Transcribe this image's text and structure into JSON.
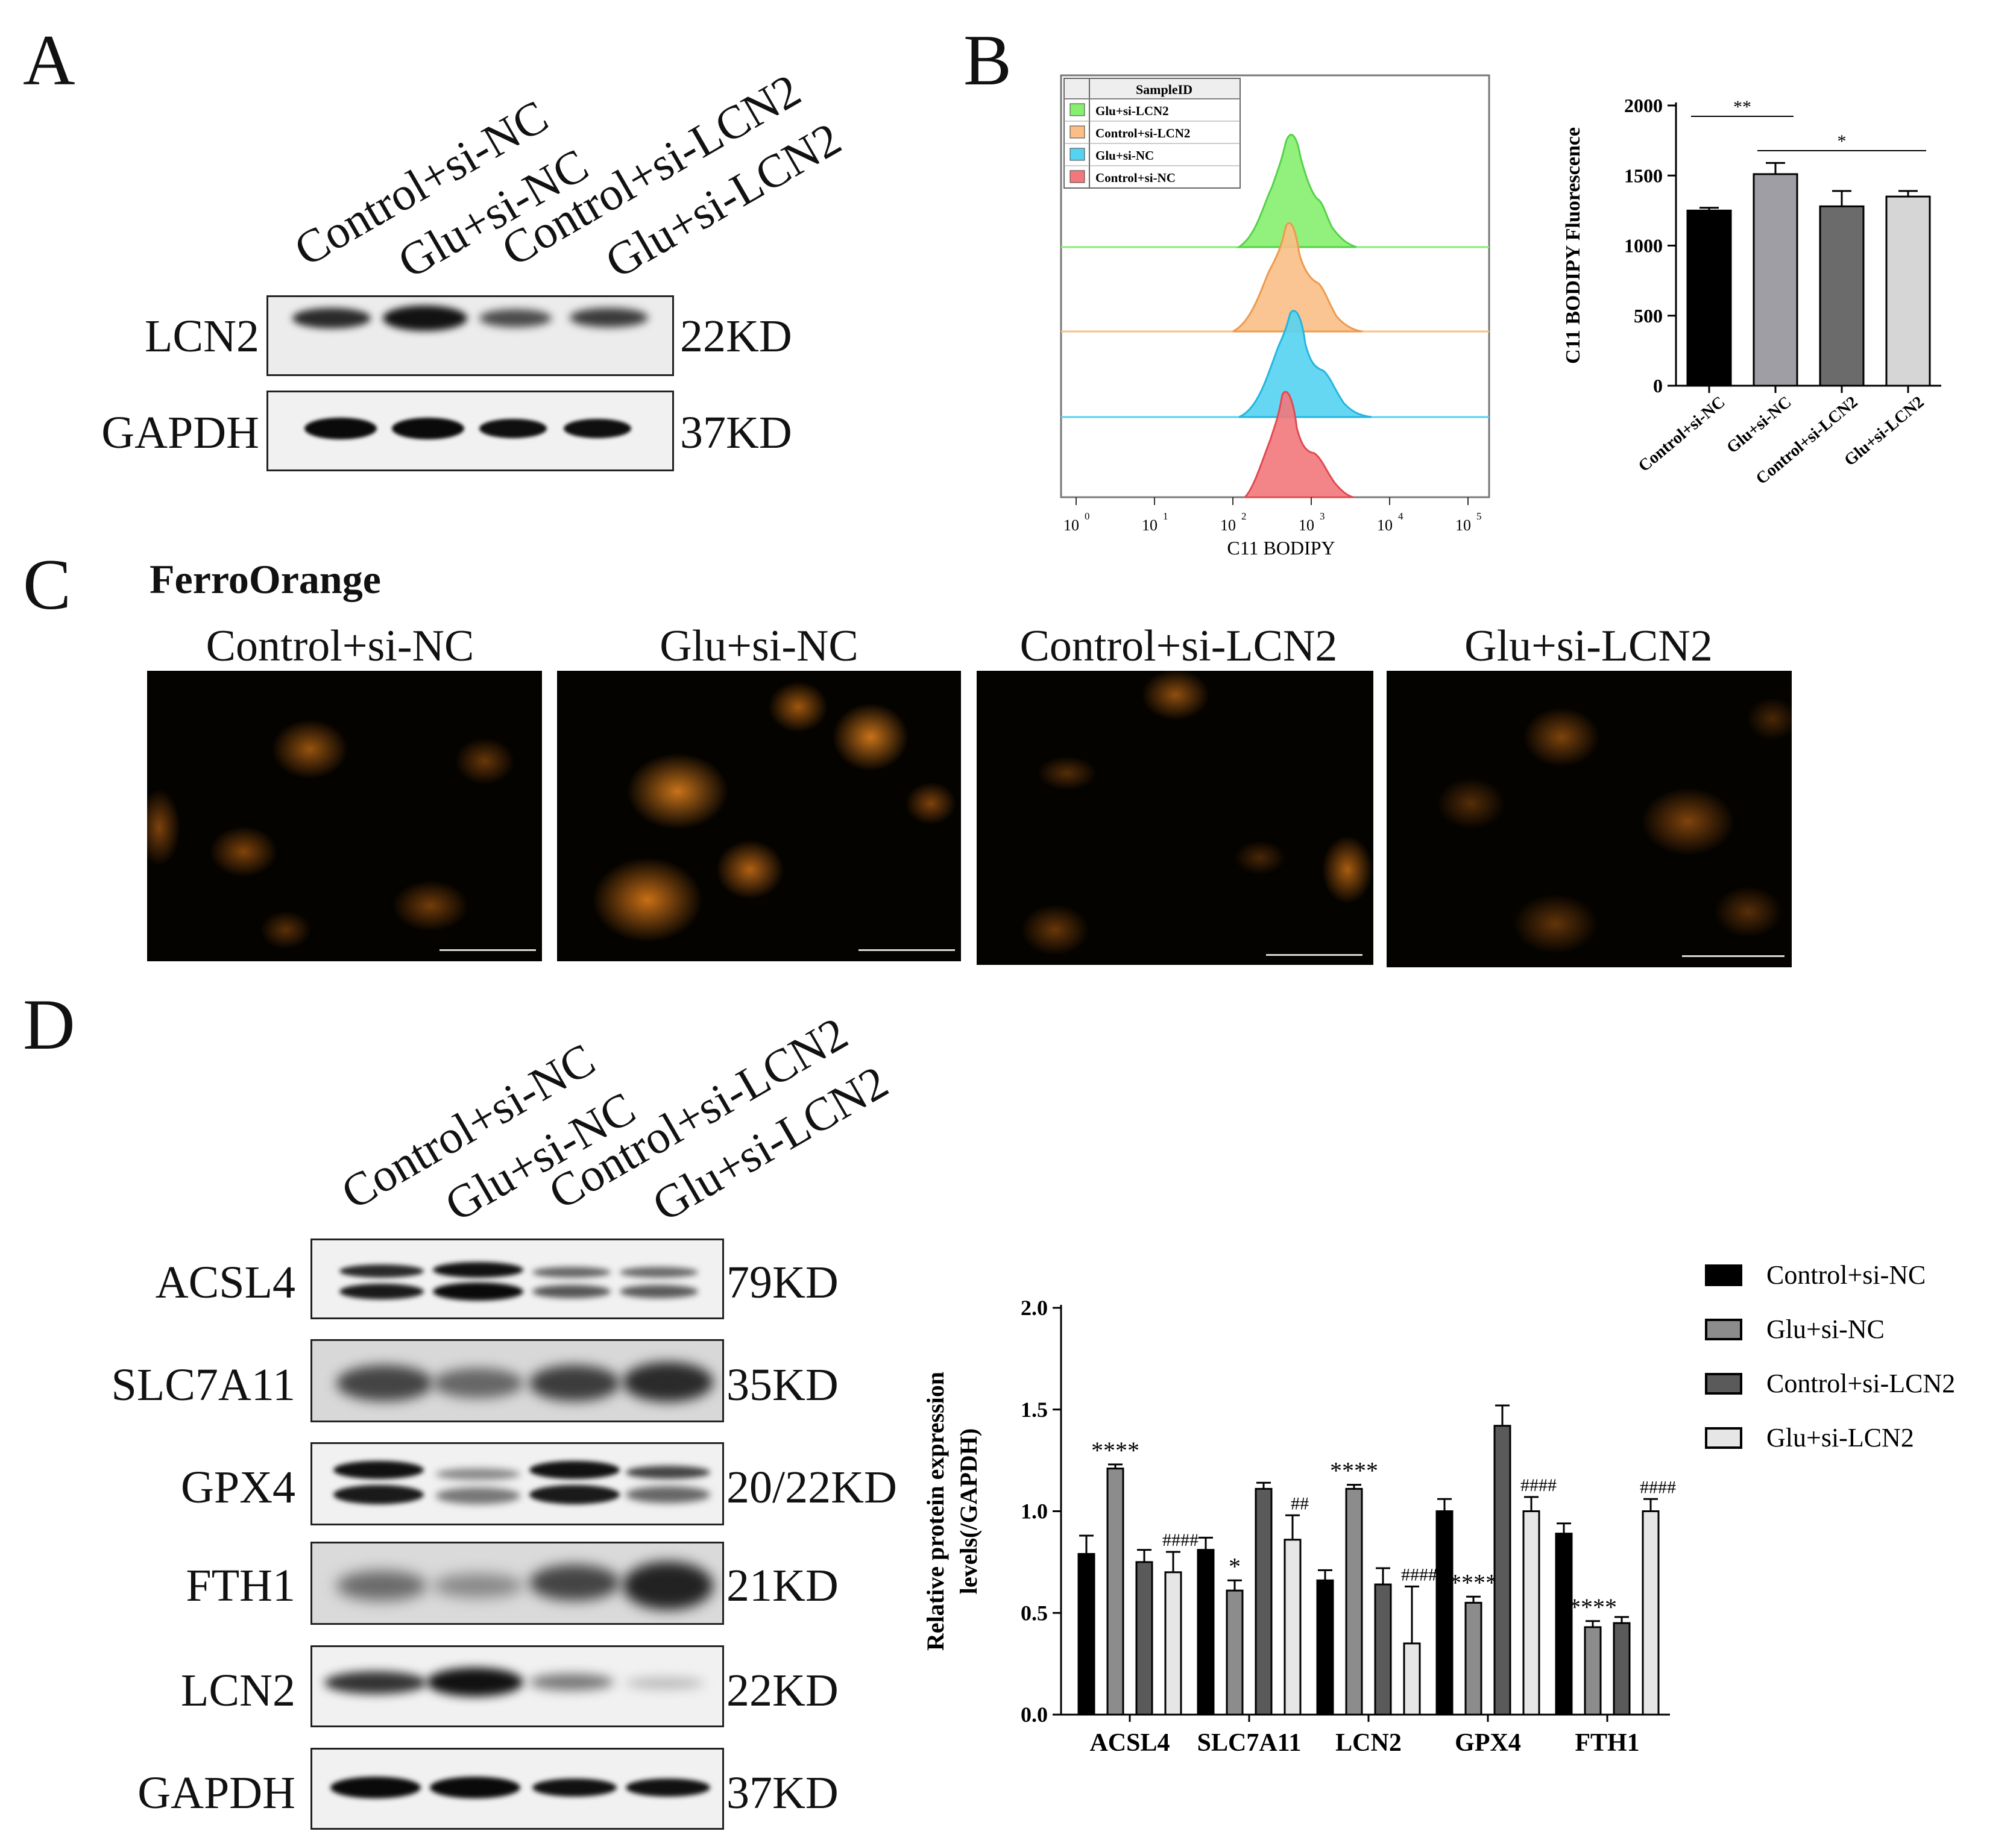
{
  "panel_labels": [
    "A",
    "B",
    "C",
    "D"
  ],
  "lanes": [
    "Control+si-NC",
    "Glu+si-NC",
    "Control+si-LCN2",
    "Glu+si-LCN2"
  ],
  "panelA": {
    "rows": [
      {
        "name": "LCN2",
        "kd": "22KD"
      },
      {
        "name": "GAPDH",
        "kd": "37KD"
      }
    ]
  },
  "panelB": {
    "flow": {
      "legend_title": "SampleID",
      "legend": [
        "Glu+si-LCN2",
        "Control+si-LCN2",
        "Glu+si-NC",
        "Control+si-NC"
      ],
      "colors": [
        "#86ef6f",
        "#f9bf86",
        "#55d3f1",
        "#f2787c"
      ],
      "xlabel": "C11 BODIPY",
      "xticks": [
        "10",
        "10",
        "10",
        "10",
        "10",
        "10"
      ],
      "xexp": [
        "0",
        "1",
        "2",
        "3",
        "4",
        "5"
      ]
    }
  },
  "panelC": {
    "title": "FerroOrange",
    "images": [
      "Control+si-NC",
      "Glu+si-NC",
      "Control+si-LCN2",
      "Glu+si-LCN2"
    ]
  },
  "panelD": {
    "rows": [
      {
        "name": "ACSL4",
        "kd": "79KD"
      },
      {
        "name": "SLC7A11",
        "kd": "35KD"
      },
      {
        "name": "GPX4",
        "kd": "20/22KD"
      },
      {
        "name": "FTH1",
        "kd": "21KD"
      },
      {
        "name": "LCN2",
        "kd": "22KD"
      },
      {
        "name": "GAPDH",
        "kd": "37KD"
      }
    ]
  },
  "chart_data": [
    {
      "type": "bar",
      "categories": [
        "Control+si-NC",
        "Glu+si-NC",
        "Control+si-LCN2",
        "Glu+si-LCN2"
      ],
      "values": [
        1250,
        1510,
        1280,
        1350
      ],
      "errors": [
        20,
        80,
        110,
        40
      ],
      "colors": [
        "#000000",
        "#9e9ea4",
        "#6b6b6b",
        "#d6d6d6"
      ],
      "ylabel": "C11 BODIPY Fluorescence",
      "ylim": [
        0,
        2000
      ],
      "yticks": [
        0,
        500,
        1000,
        1500,
        2000
      ],
      "significance": [
        {
          "from": 0,
          "to": 1,
          "label": "**"
        },
        {
          "from": 1,
          "to": 3,
          "label": "*"
        }
      ]
    },
    {
      "type": "bar",
      "categories": [
        "ACSL4",
        "SLC7A11",
        "LCN2",
        "GPX4",
        "FTH1"
      ],
      "series": [
        {
          "name": "Control+si-NC",
          "values": [
            0.79,
            0.81,
            0.66,
            1.0,
            0.89
          ],
          "errors": [
            0.09,
            0.06,
            0.05,
            0.06,
            0.05
          ]
        },
        {
          "name": "Glu+si-NC",
          "values": [
            1.21,
            0.61,
            1.11,
            0.55,
            0.43
          ],
          "errors": [
            0.02,
            0.05,
            0.02,
            0.03,
            0.03
          ]
        },
        {
          "name": "Control+si-LCN2",
          "values": [
            0.75,
            1.11,
            0.64,
            1.42,
            0.45
          ],
          "errors": [
            0.06,
            0.03,
            0.08,
            0.1,
            0.03
          ]
        },
        {
          "name": "Glu+si-LCN2",
          "values": [
            0.7,
            0.86,
            0.35,
            1.0,
            1.0
          ],
          "errors": [
            0.1,
            0.12,
            0.28,
            0.07,
            0.06
          ]
        }
      ],
      "annotations": [
        {
          "category": 0,
          "series": 1,
          "label": "****"
        },
        {
          "category": 0,
          "series": 3,
          "label": "####"
        },
        {
          "category": 1,
          "series": 1,
          "label": "*"
        },
        {
          "category": 1,
          "series": 3,
          "label": "##"
        },
        {
          "category": 2,
          "series": 1,
          "label": "****"
        },
        {
          "category": 2,
          "series": 3,
          "label": "####"
        },
        {
          "category": 3,
          "series": 1,
          "label": "****"
        },
        {
          "category": 3,
          "series": 3,
          "label": "####"
        },
        {
          "category": 4,
          "series": 1,
          "label": "****"
        },
        {
          "category": 4,
          "series": 3,
          "label": "####"
        }
      ],
      "ylabel": "Relative protein expression levels(/GAPDH)",
      "ylim": [
        0,
        2.0
      ],
      "yticks": [
        "0.0",
        "0.5",
        "1.0",
        "1.5",
        "2.0"
      ],
      "colors": [
        "#000000",
        "#8c8c8c",
        "#5a5a5a",
        "#e6e6e6"
      ],
      "legend_position": "top-right"
    }
  ]
}
